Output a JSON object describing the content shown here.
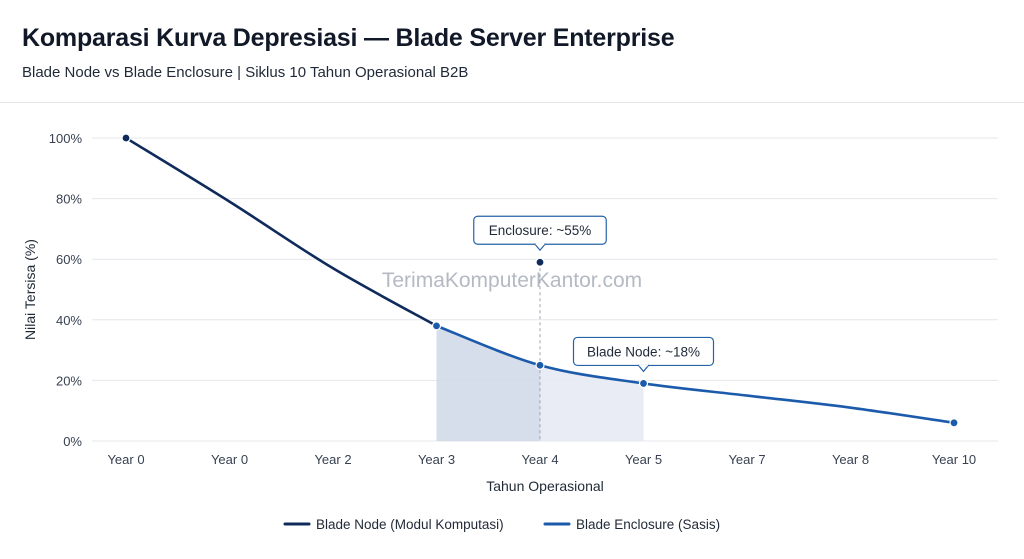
{
  "header": {
    "title": "Komparasi Kurva Depresiasi — Blade Server Enterprise",
    "subtitle": "Blade Node vs Blade Enclosure | Siklus 10 Tahun Operasional B2B"
  },
  "watermark": "TerimaKomputerKantor.com",
  "colors": {
    "node": "#0f2b5b",
    "enclosure": "#1c5bab",
    "shade_dark": "#cfd8e8",
    "shade_light": "#e5e9f3",
    "grid": "#e5e7eb",
    "callout_border": "#2563a8"
  },
  "chart_data": {
    "type": "line",
    "xlabel": "Tahun Operasional",
    "ylabel": "Nilai Tersisa (%)",
    "ylim": [
      0,
      100
    ],
    "yticks": [
      "0%",
      "20%",
      "40%",
      "60%",
      "80%",
      "100%"
    ],
    "categories": [
      "Year 0",
      "Year 0",
      "Year 2",
      "Year 3",
      "Year 4",
      "Year 5",
      "Year 7",
      "Year 8",
      "Year 10"
    ],
    "grid": true,
    "legend_position": "bottom-center",
    "series": [
      {
        "name": "Blade Node (Modul Komputasi)",
        "points": [
          [
            0,
            100
          ],
          [
            1,
            79
          ],
          [
            2,
            57
          ],
          [
            3,
            38
          ]
        ]
      },
      {
        "name": "Blade Enclosure (Sasis)",
        "points": [
          [
            3,
            38
          ],
          [
            4,
            25
          ],
          [
            5,
            19
          ],
          [
            6,
            15
          ],
          [
            7,
            11
          ],
          [
            8,
            6
          ]
        ]
      }
    ],
    "markers": [
      {
        "x": 0,
        "y": 100
      },
      {
        "x": 3,
        "y": 38
      },
      {
        "x": 4,
        "y": 25
      },
      {
        "x": 5,
        "y": 19
      },
      {
        "x": 8,
        "y": 6
      },
      {
        "x": 4,
        "y": 59
      }
    ],
    "annotations": [
      {
        "text": "Enclosure: ~55%",
        "x": 4,
        "y": 59
      },
      {
        "text": "Blade Node: ~18%",
        "x": 5,
        "y": 19
      }
    ],
    "shaded_ranges": [
      {
        "from": 3,
        "to": 4,
        "tone": "dark"
      },
      {
        "from": 4,
        "to": 5,
        "tone": "light"
      }
    ],
    "vline_x": 4
  }
}
